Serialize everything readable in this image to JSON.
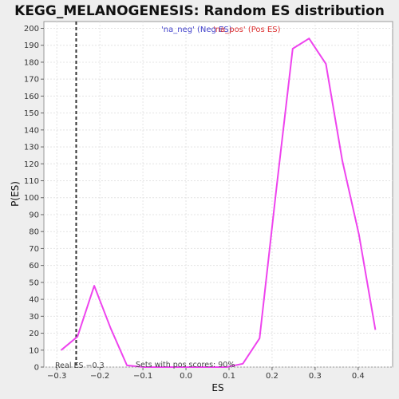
{
  "chart_data": {
    "type": "line",
    "title": "KEGG_MELANOGENESIS: Random ES distribution",
    "xlabel": "ES",
    "ylabel": "P(ES)",
    "xlim": [
      -0.33,
      0.48
    ],
    "ylim": [
      0,
      204
    ],
    "x_ticks": [
      -0.3,
      -0.2,
      -0.1,
      0.0,
      0.1,
      0.2,
      0.3,
      0.4
    ],
    "x_tick_labels": [
      "−0.3",
      "−0.2",
      "−0.1",
      "0.0",
      "0.1",
      "0.2",
      "0.3",
      "0.4"
    ],
    "y_ticks": [
      0,
      10,
      20,
      30,
      40,
      50,
      60,
      70,
      80,
      90,
      100,
      110,
      120,
      130,
      140,
      150,
      160,
      170,
      180,
      190,
      200
    ],
    "grid": true,
    "legend": {
      "position": "top-center",
      "entries": [
        {
          "label": "'na_neg' (Neg ES)",
          "color": "#4444cc"
        },
        {
          "label": "'na_pos' (Pos ES)",
          "color": "#dd3333"
        }
      ]
    },
    "series": [
      {
        "color": "#ee44ee",
        "x": [
          -0.29,
          -0.252,
          -0.213,
          -0.175,
          -0.137,
          -0.098,
          -0.06,
          -0.021,
          0.017,
          0.056,
          0.094,
          0.132,
          0.171,
          0.209,
          0.248,
          0.286,
          0.325,
          0.363,
          0.402,
          0.44
        ],
        "y": [
          10,
          18,
          48,
          23,
          1,
          0,
          0,
          0,
          0,
          0,
          0,
          2,
          17,
          103,
          188,
          194,
          179,
          122,
          78,
          22
        ]
      }
    ],
    "real_es": {
      "value": -0.255,
      "label": "Real ES −0.3"
    },
    "annotation": "Sets with pos scores: 90%"
  }
}
